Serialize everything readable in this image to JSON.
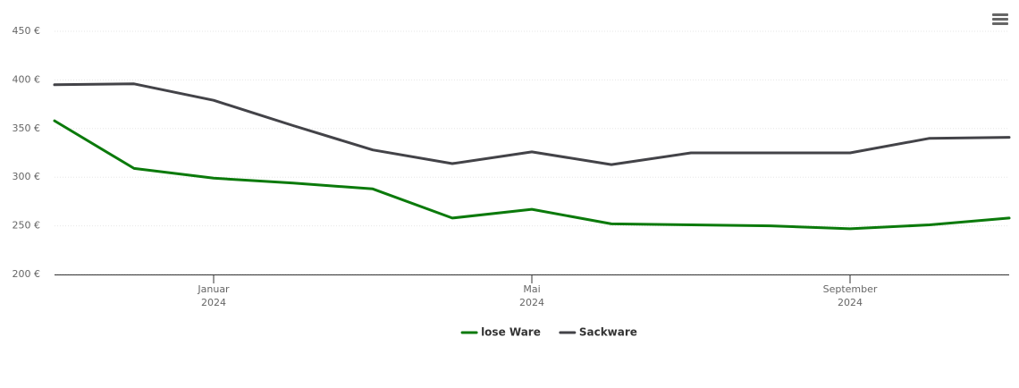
{
  "chart_data": {
    "type": "line",
    "x": [
      "2023-11",
      "2023-12",
      "2024-01",
      "2024-02",
      "2024-03",
      "2024-04",
      "2024-05",
      "2024-06",
      "2024-07",
      "2024-08",
      "2024-09",
      "2024-10",
      "2024-11"
    ],
    "series": [
      {
        "name": "lose Ware",
        "color": "#0b7a0b",
        "values": [
          358,
          309,
          299,
          294,
          288,
          258,
          267,
          252,
          251,
          250,
          247,
          251,
          258
        ]
      },
      {
        "name": "Sackware",
        "color": "#434348",
        "values": [
          395,
          396,
          379,
          353,
          328,
          314,
          326,
          313,
          325,
          325,
          325,
          340,
          341
        ]
      }
    ],
    "xlim": [
      "2023-11",
      "2024-11"
    ],
    "xticks": [
      {
        "value": "2024-01",
        "label": "Januar",
        "year": "2024"
      },
      {
        "value": "2024-05",
        "label": "Mai",
        "year": "2024"
      },
      {
        "value": "2024-09",
        "label": "September",
        "year": "2024"
      }
    ],
    "ylim": [
      200,
      450
    ],
    "yticks": [
      {
        "value": 200,
        "label": "200 €"
      },
      {
        "value": 250,
        "label": "250 €"
      },
      {
        "value": 300,
        "label": "300 €"
      },
      {
        "value": 350,
        "label": "350 €"
      },
      {
        "value": 400,
        "label": "400 €"
      },
      {
        "value": 450,
        "label": "450 €"
      }
    ],
    "grid": true,
    "legend": "bottom"
  }
}
